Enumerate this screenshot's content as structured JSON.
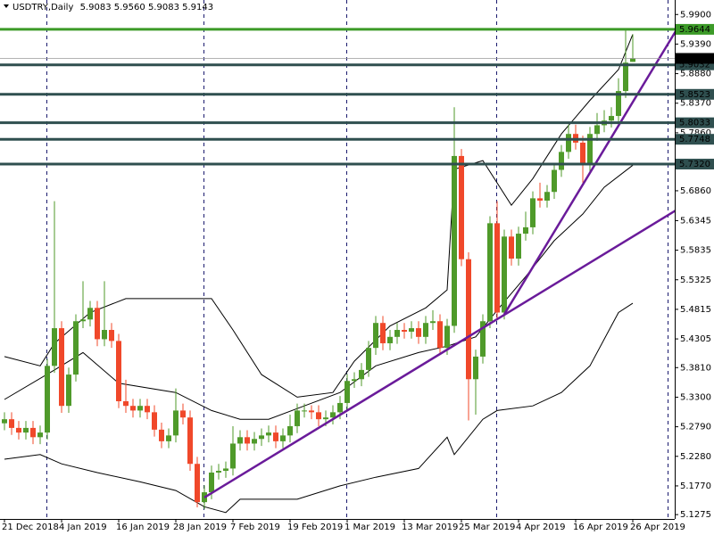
{
  "chart_data": {
    "type": "candlestick",
    "header": {
      "symbol": "USDTRY,Daily",
      "ohlc": [
        "5.9083",
        "5.9560",
        "5.9083",
        "5.9143"
      ]
    },
    "categories": [
      "21 Dec 2018",
      null,
      null,
      null,
      null,
      null,
      null,
      null,
      "4 Jan 2019",
      null,
      null,
      null,
      null,
      null,
      null,
      null,
      "16 Jan 2019",
      null,
      null,
      null,
      null,
      null,
      null,
      null,
      "28 Jan 2019",
      null,
      null,
      null,
      null,
      null,
      null,
      null,
      "7 Feb 2019",
      null,
      null,
      null,
      null,
      null,
      null,
      null,
      "19 Feb 2019",
      null,
      null,
      null,
      null,
      null,
      null,
      null,
      "1 Mar 2019",
      null,
      null,
      null,
      null,
      null,
      null,
      null,
      "13 Mar 2019",
      null,
      null,
      null,
      null,
      null,
      null,
      null,
      "25 Mar 2019",
      null,
      null,
      null,
      null,
      null,
      null,
      null,
      "4 Apr 2019",
      null,
      null,
      null,
      null,
      null,
      null,
      null,
      "16 Apr 2019",
      null,
      null,
      null,
      null,
      null,
      null,
      null,
      "26 Apr 2019"
    ],
    "open": [
      5.285,
      5.292,
      5.277,
      5.269,
      5.277,
      5.261,
      5.269,
      5.384,
      5.449,
      5.315,
      5.369,
      5.461,
      5.464,
      5.484,
      5.43,
      5.446,
      5.427,
      5.323,
      5.315,
      5.307,
      5.315,
      5.304,
      5.274,
      5.254,
      5.264,
      5.307,
      5.295,
      5.215,
      5.149,
      5.166,
      5.2,
      5.203,
      5.207,
      5.25,
      5.261,
      5.25,
      5.258,
      5.264,
      5.269,
      5.254,
      5.264,
      5.28,
      5.307,
      5.307,
      5.304,
      5.292,
      5.295,
      5.304,
      5.32,
      5.358,
      5.361,
      5.377,
      5.415,
      5.458,
      5.423,
      5.434,
      5.446,
      5.443,
      5.449,
      5.434,
      5.458,
      5.461,
      5.415,
      5.453,
      5.746,
      5.568,
      5.361,
      5.4,
      5.461,
      5.63,
      5.476,
      5.607,
      5.569,
      5.612,
      5.623,
      5.673,
      5.669,
      5.684,
      5.722,
      5.753,
      5.784,
      5.769,
      5.73,
      5.784,
      5.799,
      5.807,
      5.815,
      5.858,
      5.9083
    ],
    "high": [
      5.304,
      5.304,
      5.289,
      5.289,
      5.289,
      5.281,
      5.396,
      5.668,
      5.461,
      5.381,
      5.473,
      5.53,
      5.496,
      5.496,
      5.53,
      5.458,
      5.439,
      5.36,
      5.327,
      5.327,
      5.327,
      5.316,
      5.286,
      5.276,
      5.345,
      5.319,
      5.307,
      5.227,
      5.178,
      5.212,
      5.215,
      5.219,
      5.28,
      5.273,
      5.273,
      5.27,
      5.276,
      5.281,
      5.281,
      5.276,
      5.3,
      5.319,
      5.319,
      5.316,
      5.316,
      5.307,
      5.316,
      5.332,
      5.37,
      5.373,
      5.389,
      5.427,
      5.47,
      5.47,
      5.446,
      5.458,
      5.458,
      5.461,
      5.461,
      5.47,
      5.48,
      5.473,
      5.465,
      5.83,
      5.758,
      5.58,
      5.412,
      5.473,
      5.642,
      5.668,
      5.619,
      5.619,
      5.624,
      5.65,
      5.685,
      5.7,
      5.696,
      5.734,
      5.765,
      5.8,
      5.8,
      5.781,
      5.796,
      5.82,
      5.825,
      5.83,
      5.88,
      5.964,
      5.956
    ],
    "low": [
      5.273,
      5.265,
      5.257,
      5.257,
      5.249,
      5.249,
      5.257,
      5.372,
      5.303,
      5.303,
      5.357,
      5.449,
      5.452,
      5.418,
      5.418,
      5.415,
      5.311,
      5.303,
      5.295,
      5.295,
      5.292,
      5.262,
      5.242,
      5.242,
      5.252,
      5.283,
      5.203,
      5.14,
      5.137,
      5.154,
      5.188,
      5.191,
      5.195,
      5.238,
      5.238,
      5.238,
      5.246,
      5.252,
      5.242,
      5.242,
      5.252,
      5.268,
      5.295,
      5.292,
      5.28,
      5.28,
      5.283,
      5.292,
      5.308,
      5.346,
      5.349,
      5.365,
      5.403,
      5.411,
      5.411,
      5.422,
      5.431,
      5.431,
      5.422,
      5.422,
      5.446,
      5.403,
      5.403,
      5.441,
      5.556,
      5.29,
      5.3,
      5.388,
      5.449,
      5.464,
      5.464,
      5.557,
      5.557,
      5.6,
      5.611,
      5.657,
      5.657,
      5.672,
      5.71,
      5.741,
      5.757,
      5.7,
      5.718,
      5.772,
      5.787,
      5.795,
      5.803,
      5.846,
      5.9083
    ],
    "close": [
      5.292,
      5.277,
      5.269,
      5.277,
      5.261,
      5.269,
      5.384,
      5.449,
      5.315,
      5.369,
      5.461,
      5.464,
      5.484,
      5.43,
      5.446,
      5.427,
      5.323,
      5.315,
      5.307,
      5.315,
      5.304,
      5.274,
      5.254,
      5.264,
      5.307,
      5.295,
      5.215,
      5.149,
      5.166,
      5.2,
      5.203,
      5.207,
      5.25,
      5.261,
      5.25,
      5.258,
      5.264,
      5.269,
      5.254,
      5.264,
      5.28,
      5.307,
      5.307,
      5.304,
      5.292,
      5.295,
      5.304,
      5.32,
      5.358,
      5.361,
      5.377,
      5.415,
      5.458,
      5.423,
      5.434,
      5.446,
      5.443,
      5.449,
      5.434,
      5.458,
      5.461,
      5.415,
      5.453,
      5.746,
      5.568,
      5.361,
      5.4,
      5.461,
      5.63,
      5.476,
      5.607,
      5.569,
      5.612,
      5.623,
      5.673,
      5.669,
      5.684,
      5.722,
      5.753,
      5.784,
      5.769,
      5.73,
      5.784,
      5.799,
      5.807,
      5.815,
      5.858,
      5.907,
      5.9143
    ],
    "up_color": "#4f9a2a",
    "down_color": "#f0482a",
    "indicators": [
      {
        "color": "#000000",
        "x": [
          0,
          5,
          7,
          12,
          17,
          24,
          29,
          32,
          36,
          41,
          46,
          49,
          54,
          59,
          62,
          63,
          67,
          71,
          74,
          78,
          82,
          86,
          88
        ],
        "values": [
          5.4,
          5.384,
          5.423,
          5.476,
          5.5,
          5.5,
          5.5,
          5.446,
          5.369,
          5.33,
          5.338,
          5.392,
          5.453,
          5.484,
          5.515,
          5.723,
          5.738,
          5.661,
          5.707,
          5.784,
          5.842,
          5.895,
          5.956
        ]
      },
      {
        "color": "#000000",
        "x": [
          0,
          7,
          11,
          16,
          24,
          29,
          33,
          37,
          42,
          47,
          52,
          58,
          62,
          66,
          69,
          73,
          77,
          81,
          84,
          88
        ],
        "values": [
          5.326,
          5.377,
          5.407,
          5.354,
          5.338,
          5.307,
          5.292,
          5.292,
          5.315,
          5.338,
          5.384,
          5.407,
          5.418,
          5.434,
          5.48,
          5.538,
          5.6,
          5.646,
          5.692,
          5.73
        ]
      },
      {
        "color": "#000000",
        "x": [
          0,
          5,
          8,
          13,
          19,
          24,
          28,
          31,
          33,
          41,
          47,
          52,
          58,
          62,
          63,
          67,
          69,
          74,
          78,
          82,
          86,
          88
        ],
        "values": [
          5.223,
          5.231,
          5.215,
          5.2,
          5.184,
          5.169,
          5.141,
          5.131,
          5.154,
          5.154,
          5.177,
          5.192,
          5.207,
          5.261,
          5.231,
          5.292,
          5.307,
          5.315,
          5.338,
          5.384,
          5.476,
          5.492
        ]
      }
    ],
    "trendlines": [
      {
        "color": "#6a1b9a",
        "x": [
          28,
          94
        ],
        "values": [
          5.157,
          5.652
        ]
      },
      {
        "color": "#6a1b9a",
        "x": [
          70,
          94
        ],
        "values": [
          5.473,
          5.961
        ]
      }
    ],
    "levels": [
      {
        "value": 5.9644,
        "color": "#3c9a28"
      },
      {
        "value": 5.9032,
        "color": "#2f4f4f"
      },
      {
        "value": 5.8523,
        "color": "#2f4f4f"
      },
      {
        "value": 5.8033,
        "color": "#2f4f4f"
      },
      {
        "value": 5.7748,
        "color": "#2f4f4f"
      },
      {
        "value": 5.732,
        "label": "5.7320",
        "color": "#2f4f4f"
      }
    ],
    "last_price": 5.9143,
    "ylim": [
      5.12,
      6.015
    ],
    "yticks": [
      {
        "value": 5.99,
        "label": "5.9900"
      },
      {
        "value": 5.939,
        "label": "5.9390"
      },
      {
        "value": 5.888,
        "label": "5.8880"
      },
      {
        "value": 5.837,
        "label": "5.8370"
      },
      {
        "value": 5.786,
        "label": "5.7860"
      },
      {
        "value": 5.686,
        "label": "5.6860"
      },
      5.6345,
      5.5835,
      5.5325,
      5.4815,
      5.4305,
      {
        "value": 5.381,
        "label": "5.3810"
      },
      {
        "value": 5.33,
        "label": "5.3300"
      },
      {
        "value": 5.279,
        "label": "5.2790"
      },
      {
        "value": 5.228,
        "label": "5.2280"
      },
      {
        "value": 5.177,
        "label": "5.1770"
      },
      5.1275
    ]
  }
}
